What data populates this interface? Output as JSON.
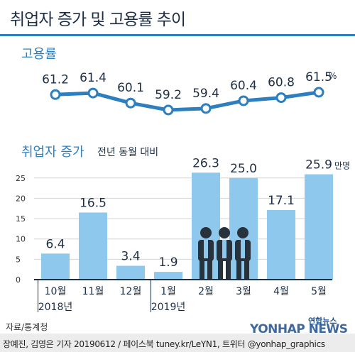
{
  "title": "취업자 증가 및 고용률 추이",
  "chart_data": [
    {
      "type": "line",
      "title": "고용률",
      "unit": "%",
      "categories": [
        "10월",
        "11월",
        "12월",
        "1월",
        "2월",
        "3월",
        "4월",
        "5월"
      ],
      "values": [
        61.2,
        61.4,
        60.1,
        59.2,
        59.4,
        60.4,
        60.8,
        61.5
      ],
      "labels": [
        "61.2",
        "61.4",
        "60.1",
        "59.2",
        "59.4",
        "60.4",
        "60.8",
        "61.5"
      ],
      "colors": {
        "line": "#2d7fc0",
        "marker_fill": "#ffffff"
      }
    },
    {
      "type": "bar",
      "title": "취업자 증가",
      "subtitle": "전년 동월 대비",
      "unit": "만명",
      "categories": [
        "10월",
        "11월",
        "12월",
        "1월",
        "2월",
        "3월",
        "4월",
        "5월"
      ],
      "year_labels": [
        "2018년",
        "",
        "",
        "2019년",
        "",
        "",
        "",
        ""
      ],
      "values": [
        6.4,
        16.5,
        3.4,
        1.9,
        26.3,
        25.0,
        17.1,
        25.9
      ],
      "labels": [
        "6.4",
        "16.5",
        "3.4",
        "1.9",
        "26.3",
        "25.0",
        "17.1",
        "25.9"
      ],
      "y_ticks": [
        "25",
        "20",
        "15",
        "10",
        "5",
        "0"
      ],
      "ylim": [
        0,
        30
      ],
      "grid": true,
      "colors": {
        "bar": "#8ec8ec",
        "grid": "#d4d4d4",
        "title": "#2d7fc0"
      }
    }
  ],
  "source": "자료/통계청",
  "footer": "장예진, 김영은 기자 20190612 / 페이스북 tuney.kr/LeYN1, 트위터 @yonhap_graphics",
  "logo_en": "YONHAP NEWS",
  "logo_kor": "연합뉴스"
}
